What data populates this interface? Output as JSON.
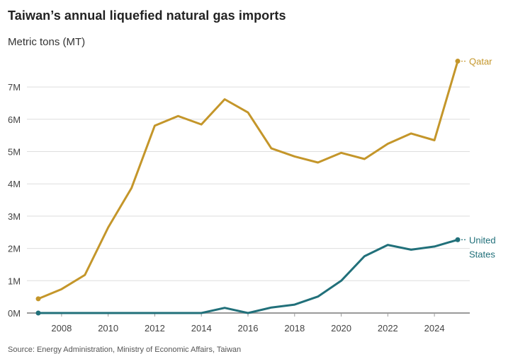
{
  "header": {
    "title": "Taiwan’s annual liquefied natural gas imports",
    "subtitle": "Metric tons (MT)"
  },
  "footer": {
    "source": "Source: Energy Administration, Ministry of Economic Affairs, Taiwan"
  },
  "chart_data": {
    "type": "line",
    "title": "Taiwan’s annual liquefied natural gas imports",
    "subtitle": "Metric tons (MT)",
    "xlabel": "",
    "ylabel": "Metric tons (MT)",
    "x": [
      2007,
      2008,
      2009,
      2010,
      2011,
      2012,
      2013,
      2014,
      2015,
      2016,
      2017,
      2018,
      2019,
      2020,
      2021,
      2022,
      2023,
      2024,
      2025
    ],
    "xlim": [
      2007,
      2025
    ],
    "ylim": [
      0,
      7800000
    ],
    "x_ticks": [
      2008,
      2010,
      2012,
      2014,
      2016,
      2018,
      2020,
      2022,
      2024
    ],
    "x_tick_labels": [
      "2008",
      "2010",
      "2012",
      "2014",
      "2016",
      "2018",
      "2020",
      "2022",
      "2024"
    ],
    "y_ticks": [
      0,
      1000000,
      2000000,
      3000000,
      4000000,
      5000000,
      6000000,
      7000000
    ],
    "y_tick_labels": [
      "0M",
      "1M",
      "2M",
      "3M",
      "4M",
      "5M",
      "6M",
      "7M"
    ],
    "grid": true,
    "legend": "direct labels at line ends (right)",
    "series": [
      {
        "name": "Qatar",
        "label_lines": [
          "Qatar"
        ],
        "color": "#C4962A",
        "values": [
          440000,
          740000,
          1180000,
          2650000,
          3870000,
          5800000,
          6100000,
          5840000,
          6620000,
          6210000,
          5100000,
          4850000,
          4660000,
          4960000,
          4770000,
          5240000,
          5560000,
          5350000,
          7800000
        ]
      },
      {
        "name": "United States",
        "label_lines": [
          "United",
          "States"
        ],
        "color": "#21707A",
        "values": [
          0,
          0,
          0,
          0,
          0,
          0,
          0,
          0,
          160000,
          0,
          170000,
          260000,
          510000,
          1000000,
          1760000,
          2110000,
          1960000,
          2060000,
          2270000
        ]
      }
    ]
  }
}
